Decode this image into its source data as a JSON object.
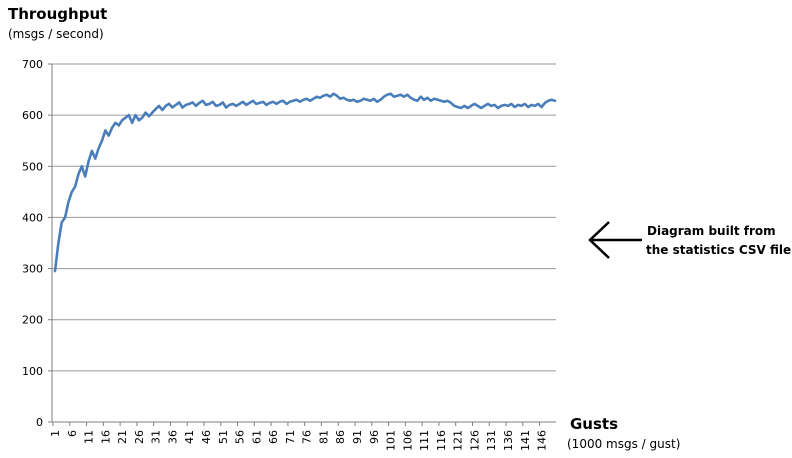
{
  "chart_data": {
    "type": "line",
    "ylabel": "Throughput",
    "ylabel_unit": "(msgs / second)",
    "xlabel": "Gusts",
    "xlabel_unit": "(1000 msgs / gust)",
    "ylim": [
      0,
      700
    ],
    "yticks": [
      0,
      100,
      200,
      300,
      400,
      500,
      600,
      700
    ],
    "xlim": [
      1,
      150
    ],
    "xticks": [
      1,
      6,
      11,
      16,
      21,
      26,
      31,
      36,
      41,
      46,
      51,
      56,
      61,
      66,
      71,
      76,
      81,
      86,
      91,
      96,
      101,
      106,
      111,
      116,
      121,
      126,
      131,
      136,
      141,
      146
    ],
    "grid": "horizontal",
    "line_color": "#4a7ebb",
    "series": [
      {
        "values": [
          295,
          350,
          390,
          400,
          430,
          450,
          460,
          485,
          500,
          480,
          510,
          530,
          515,
          535,
          550,
          570,
          560,
          575,
          585,
          580,
          590,
          595,
          600,
          585,
          600,
          590,
          595,
          605,
          598,
          605,
          612,
          618,
          610,
          618,
          622,
          615,
          620,
          625,
          615,
          620,
          622,
          625,
          618,
          624,
          628,
          620,
          622,
          626,
          618,
          620,
          625,
          615,
          620,
          622,
          618,
          622,
          626,
          620,
          624,
          628,
          622,
          624,
          626,
          620,
          624,
          626,
          622,
          626,
          628,
          622,
          626,
          628,
          630,
          626,
          630,
          632,
          628,
          632,
          636,
          634,
          638,
          640,
          636,
          642,
          638,
          632,
          634,
          630,
          628,
          630,
          626,
          628,
          632,
          630,
          628,
          632,
          626,
          630,
          636,
          640,
          642,
          636,
          638,
          640,
          636,
          640,
          634,
          630,
          628,
          636,
          630,
          634,
          628,
          632,
          630,
          628,
          626,
          628,
          624,
          618,
          616,
          614,
          618,
          614,
          618,
          622,
          618,
          614,
          618,
          622,
          618,
          620,
          614,
          618,
          620,
          618,
          622,
          616,
          620,
          618,
          622,
          616,
          620,
          618,
          622,
          616,
          624,
          628,
          630,
          628
        ]
      }
    ]
  },
  "annotation": {
    "line1": "Diagram built from",
    "line2": "the statistics CSV file"
  }
}
